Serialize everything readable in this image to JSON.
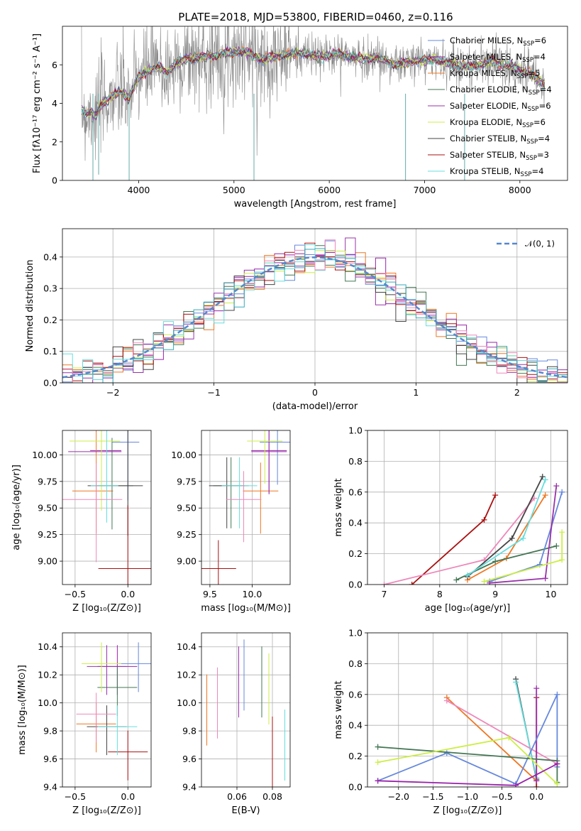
{
  "title": "PLATE=2018, MJD=53800, FIBERID=0460, z=0.116",
  "colors": [
    "#6688dd",
    "#9922aa",
    "#ee7722",
    "#447755",
    "#9933aa",
    "#ccee44",
    "#444444",
    "#aa1111",
    "#66dddd",
    "#ee88bb",
    "#33aabb"
  ],
  "legend": [
    {
      "label": "Chabrier MILES, N",
      "sub": "SSP",
      "n": "=6",
      "color": "#6688dd"
    },
    {
      "label": "Salpeter MILES, N",
      "sub": "SSP",
      "n": "=4",
      "color": "#9922aa"
    },
    {
      "label": "Kroupa MILES, N",
      "sub": "SSP",
      "n": "=5",
      "color": "#ee7722"
    },
    {
      "label": "Chabrier ELODIE, N",
      "sub": "SSP",
      "n": "=4",
      "color": "#447755"
    },
    {
      "label": "Salpeter ELODIE, N",
      "sub": "SSP",
      "n": "=6",
      "color": "#9933aa"
    },
    {
      "label": "Kroupa ELODIE, N",
      "sub": "SSP",
      "n": "=6",
      "color": "#ccee44"
    },
    {
      "label": "Chabrier STELIB, N",
      "sub": "SSP",
      "n": "=4",
      "color": "#444444"
    },
    {
      "label": "Salpeter STELIB, N",
      "sub": "SSP",
      "n": "=3",
      "color": "#aa1111"
    },
    {
      "label": "Kroupa STELIB, N",
      "sub": "SSP",
      "n": "=4",
      "color": "#66dddd"
    }
  ],
  "chart_data": [
    {
      "type": "line",
      "id": "spectrum",
      "xlabel": "wavelength [Angstrom, rest frame]",
      "ylabel": "Flux [fλ10⁻¹⁷ erg cm⁻² s⁻¹ A⁻¹]",
      "xlim": [
        3200,
        8500
      ],
      "ylim": [
        0,
        8
      ],
      "xticks": [
        4000,
        5000,
        6000,
        7000,
        8000
      ],
      "yticks": [
        0,
        2,
        4,
        6
      ],
      "model_wave": [
        3400,
        3450,
        3500,
        3550,
        3600,
        3700,
        3800,
        3900,
        4000,
        4100,
        4200,
        4300,
        4400,
        4500,
        4700,
        4900,
        5100,
        5300,
        5500,
        5700,
        5900,
        6100,
        6300,
        6500,
        6700,
        6900,
        7100,
        7300,
        7500,
        7700,
        7900,
        8100,
        8250
      ],
      "model_flux": [
        3.7,
        3.4,
        3.6,
        3.3,
        3.9,
        4.3,
        4.6,
        4.3,
        5.4,
        5.7,
        5.9,
        5.6,
        6.1,
        6.3,
        6.4,
        6.6,
        6.7,
        6.3,
        6.5,
        6.6,
        6.4,
        6.6,
        6.3,
        6.4,
        6.0,
        6.2,
        6.3,
        6.0,
        5.9,
        6.2,
        5.9,
        5.6,
        5.0
      ]
    },
    {
      "type": "histogram",
      "id": "residuals",
      "xlabel": "(data-model)/error",
      "ylabel": "Normed distribution",
      "xlim": [
        -2.5,
        2.5
      ],
      "ylim": [
        0,
        0.49
      ],
      "xticks": [
        -2,
        -1,
        0,
        1,
        2
      ],
      "yticks": [
        0.0,
        0.1,
        0.2,
        0.3,
        0.4
      ],
      "legend_label": "𝒩(0, 1)",
      "bin_width": 0.1
    },
    {
      "type": "scatter",
      "id": "age_vs_z",
      "xlabel": "Z [log₁₀(Z/Z⊙)]",
      "ylabel": "age  [log₁₀(age/yr)]",
      "xlim": [
        -0.62,
        0.22
      ],
      "ylim": [
        8.78,
        10.23
      ],
      "xticks": [
        -0.5,
        0.0
      ],
      "yticks": [
        9.0,
        9.25,
        9.5,
        9.75,
        10.0
      ],
      "points": [
        {
          "x": 0.0,
          "y": 10.12,
          "xerr": [
            0.0,
            0.2
          ],
          "yerr": [
            0.0,
            0.0
          ],
          "c": 0
        },
        {
          "x": -0.2,
          "y": 10.04,
          "xerr": [
            0.25,
            0.05
          ],
          "yerr": [
            0.0,
            0.0
          ],
          "c": 1
        },
        {
          "x": -0.3,
          "y": 9.66,
          "xerr": [
            0.3,
            0.5
          ],
          "yerr": [
            0.0,
            0.0
          ],
          "c": 2
        },
        {
          "x": -0.15,
          "y": 9.71,
          "xerr": [
            0.1,
            0.1
          ],
          "yerr": [
            0.0,
            0.0
          ],
          "c": 3
        },
        {
          "x": -0.2,
          "y": 10.03,
          "xerr": [
            0.0,
            0.0
          ],
          "yerr": [
            0.0,
            0.0
          ],
          "c": 4
        },
        {
          "x": -0.25,
          "y": 10.13,
          "xerr": [
            0.0,
            0.0
          ],
          "yerr": [
            0.0,
            0.0
          ],
          "c": 5
        },
        {
          "x": 0.0,
          "y": 9.71,
          "xerr": [
            0.0,
            0.0
          ],
          "yerr": [
            0.0,
            0.0
          ],
          "c": 6
        },
        {
          "x": 0.0,
          "y": 8.93,
          "xerr": [
            0.0,
            0.0
          ],
          "yerr": [
            0.0,
            0.0
          ],
          "c": 7
        },
        {
          "x": -0.2,
          "y": 9.71,
          "xerr": [
            0.0,
            0.0
          ],
          "yerr": [
            0.0,
            0.0
          ],
          "c": 8
        },
        {
          "x": -0.3,
          "y": 9.58,
          "xerr": [
            0.0,
            0.0
          ],
          "yerr": [
            0.0,
            0.0
          ],
          "c": 9
        }
      ]
    },
    {
      "type": "scatter",
      "id": "age_vs_mass",
      "xlabel": "mass [log₁₀(M/M⊙)]",
      "ylabel": "",
      "xlim": [
        9.4,
        10.45
      ],
      "ylim": [
        8.78,
        10.23
      ],
      "xticks": [
        9.5,
        10.0
      ],
      "yticks": [
        9.0,
        9.25,
        9.5,
        9.75,
        10.0
      ]
    },
    {
      "type": "line",
      "id": "weight_vs_age",
      "xlabel": "age  [log₁₀(age/yr)]",
      "ylabel": "mass weight",
      "xlim": [
        6.7,
        10.3
      ],
      "ylim": [
        0,
        1
      ],
      "xticks": [
        7,
        8,
        9,
        10
      ],
      "yticks": [
        0.0,
        0.2,
        0.4,
        0.6,
        0.8,
        1.0
      ],
      "series": [
        {
          "c": 7,
          "x": [
            7.5,
            8.8,
            9.0
          ],
          "y": [
            0.0,
            0.42,
            0.58
          ]
        },
        {
          "c": 9,
          "x": [
            7.0,
            8.8,
            9.7
          ],
          "y": [
            0.0,
            0.16,
            0.56
          ]
        },
        {
          "c": 2,
          "x": [
            8.5,
            9.2,
            9.9
          ],
          "y": [
            0.03,
            0.17,
            0.58
          ]
        },
        {
          "c": 3,
          "x": [
            8.3,
            9.0,
            10.1
          ],
          "y": [
            0.03,
            0.15,
            0.25
          ]
        },
        {
          "c": 6,
          "x": [
            8.5,
            9.3,
            9.85
          ],
          "y": [
            0.05,
            0.3,
            0.7
          ]
        },
        {
          "c": 8,
          "x": [
            8.5,
            9.5,
            9.9
          ],
          "y": [
            0.06,
            0.3,
            0.68
          ]
        },
        {
          "c": 0,
          "x": [
            8.9,
            9.8,
            10.2
          ],
          "y": [
            0.02,
            0.13,
            0.6
          ]
        },
        {
          "c": 4,
          "x": [
            8.9,
            9.9,
            10.1
          ],
          "y": [
            0.01,
            0.04,
            0.64
          ]
        },
        {
          "c": 5,
          "x": [
            8.8,
            10.2,
            10.2
          ],
          "y": [
            0.02,
            0.16,
            0.34
          ]
        }
      ]
    },
    {
      "type": "scatter",
      "id": "mass_vs_z",
      "xlabel": "Z [log₁₀(Z/Z⊙)]",
      "ylabel": "mass [log₁₀(M/M⊙)]",
      "xlim": [
        -0.62,
        0.22
      ],
      "ylim": [
        9.4,
        10.5
      ],
      "xticks": [
        -0.5,
        0.0
      ],
      "yticks": [
        9.4,
        9.6,
        9.8,
        10.0,
        10.2,
        10.4
      ]
    },
    {
      "type": "scatter",
      "id": "mass_vs_ebv",
      "xlabel": "E(B-V)",
      "ylabel": "",
      "xlim": [
        0.04,
        0.09
      ],
      "ylim": [
        9.4,
        10.5
      ],
      "xticks": [
        0.06,
        0.08
      ],
      "yticks": [
        9.4,
        9.6,
        9.8,
        10.0,
        10.2,
        10.4
      ]
    },
    {
      "type": "line",
      "id": "weight_vs_z",
      "xlabel": "Z [log₁₀(Z/Z⊙)]",
      "ylabel": "mass weight",
      "xlim": [
        -2.45,
        0.45
      ],
      "ylim": [
        0,
        1
      ],
      "xticks": [
        -2.0,
        -1.5,
        -1.0,
        -0.5,
        0.0
      ],
      "yticks": [
        0.0,
        0.2,
        0.4,
        0.6,
        0.8,
        1.0
      ],
      "series": [
        {
          "c": 6,
          "x": [
            -0.3,
            0.0
          ],
          "y": [
            0.7,
            0.05
          ]
        },
        {
          "c": 8,
          "x": [
            -0.3,
            0.0
          ],
          "y": [
            0.68,
            0.06
          ]
        },
        {
          "c": 2,
          "x": [
            -1.3,
            0.0
          ],
          "y": [
            0.58,
            0.04
          ]
        },
        {
          "c": 9,
          "x": [
            -1.3,
            0.3
          ],
          "y": [
            0.56,
            0.15
          ]
        },
        {
          "c": 7,
          "x": [
            0.0,
            0.0
          ],
          "y": [
            0.0,
            0.58
          ]
        },
        {
          "c": 4,
          "x": [
            0.0,
            0.0
          ],
          "y": [
            0.04,
            0.64
          ]
        },
        {
          "c": 0,
          "x": [
            -2.3,
            -1.3,
            -0.3,
            0.3,
            0.3
          ],
          "y": [
            0.04,
            0.22,
            0.02,
            0.6,
            0.13
          ]
        },
        {
          "c": 3,
          "x": [
            -2.3,
            0.3,
            0.3
          ],
          "y": [
            0.26,
            0.17,
            0.03
          ]
        },
        {
          "c": 5,
          "x": [
            -2.3,
            -0.4,
            0.3
          ],
          "y": [
            0.16,
            0.32,
            0.02
          ]
        },
        {
          "c": 1,
          "x": [
            -2.3,
            -0.3,
            0.3
          ],
          "y": [
            0.04,
            0.01,
            0.15
          ]
        }
      ]
    }
  ]
}
